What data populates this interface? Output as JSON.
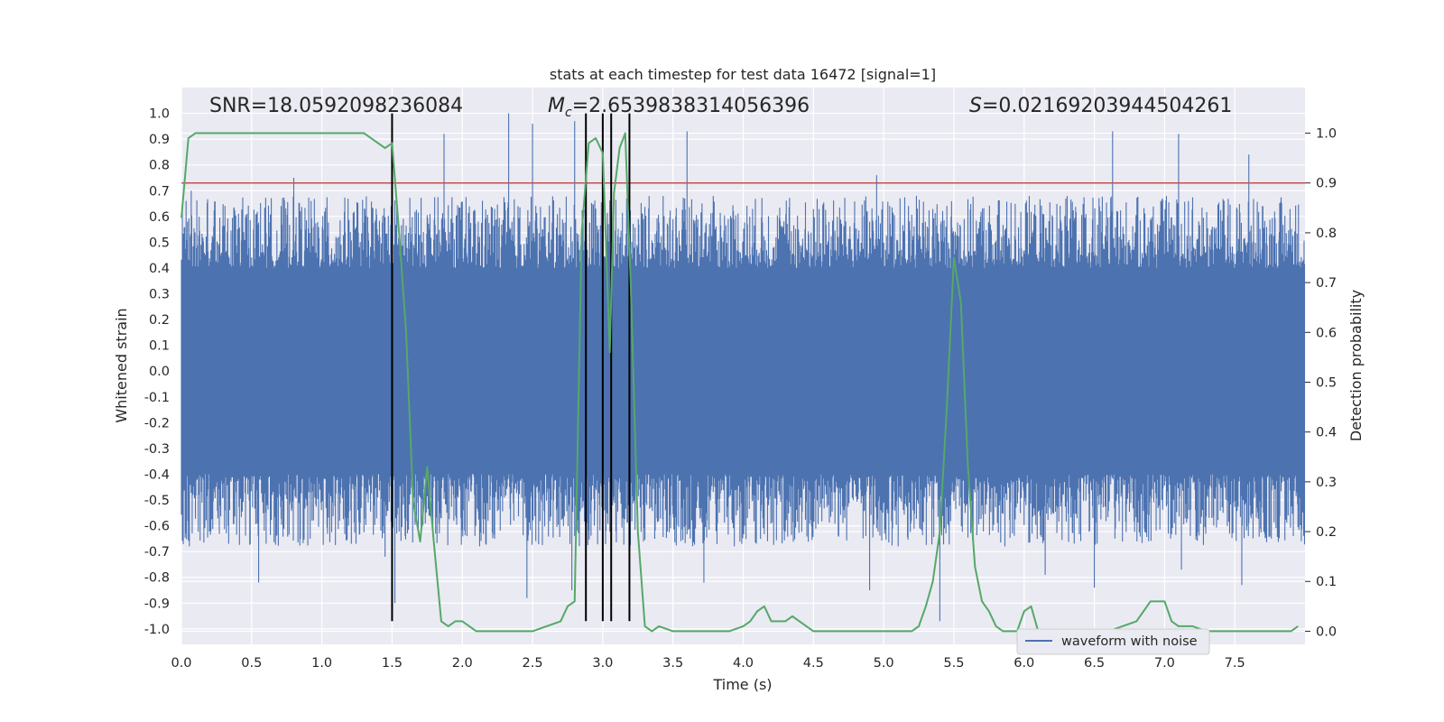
{
  "chart_data": {
    "type": "line",
    "title": "stats at each timestep for test data 16472 [signal=1]",
    "xlabel": "Time (s)",
    "ylabel_left": "Whitened strain",
    "ylabel_right": "Detection probability",
    "xlim": [
      0.0,
      8.0
    ],
    "ylim_left": [
      -1.06,
      1.1
    ],
    "ylim_right": [
      -0.0264,
      1.0916
    ],
    "x_ticks": [
      0.0,
      0.5,
      1.0,
      1.5,
      2.0,
      2.5,
      3.0,
      3.5,
      4.0,
      4.5,
      5.0,
      5.5,
      6.0,
      6.5,
      7.0,
      7.5
    ],
    "x_tick_labels": [
      "0.0",
      "0.5",
      "1.0",
      "1.5",
      "2.0",
      "2.5",
      "3.0",
      "3.5",
      "4.0",
      "4.5",
      "5.0",
      "5.5",
      "6.0",
      "6.5",
      "7.0",
      "7.5"
    ],
    "y_left_ticks": [
      1.0,
      0.9,
      0.8,
      0.7,
      0.6,
      0.5,
      0.4,
      0.3,
      0.2,
      0.1,
      0.0,
      -0.1,
      -0.2,
      -0.3,
      -0.4,
      -0.5,
      -0.6,
      -0.7,
      -0.8,
      -0.9,
      -1.0
    ],
    "y_left_tick_labels": [
      "1.0",
      "0.9",
      "0.8",
      "0.7",
      "0.6",
      "0.5",
      "0.4",
      "0.3",
      "0.2",
      "0.1",
      "0.0",
      "-0.1",
      "-0.2",
      "-0.3",
      "-0.4",
      "-0.5",
      "-0.6",
      "-0.7",
      "-0.8",
      "-0.9",
      "-1.0"
    ],
    "y_right_ticks": [
      1.0,
      0.9,
      0.8,
      0.7,
      0.6,
      0.5,
      0.4,
      0.3,
      0.2,
      0.1,
      0.0
    ],
    "y_right_tick_labels": [
      "1.0",
      "0.9",
      "0.8",
      "0.7",
      "0.6",
      "0.5",
      "0.4",
      "0.3",
      "0.2",
      "0.1",
      "0.0"
    ],
    "annotations": {
      "snr": "SNR=18.0592098236084",
      "mc_symbol": "M",
      "mc_sub": "c",
      "mc_value": "=2.6539838314056396",
      "s_symbol": "S",
      "s_value": "=0.02169203944504261"
    },
    "threshold": {
      "value": 0.9,
      "axis": "right",
      "color": "#c44e52"
    },
    "vertical_lines": [
      1.5,
      2.88,
      3.0,
      3.06,
      3.19
    ],
    "vertical_line_range": [
      -0.97,
      1.0
    ],
    "series": [
      {
        "name": "waveform with noise",
        "axis": "left",
        "color": "#4c72b0",
        "kind": "noise",
        "core_band": [
          -0.4,
          0.4
        ],
        "typical_envelope": [
          -0.6,
          0.6
        ],
        "duration_s": 8.0,
        "peaks": [
          {
            "t": 0.07,
            "v": 0.7
          },
          {
            "t": 0.55,
            "v": -0.82
          },
          {
            "t": 0.8,
            "v": 0.75
          },
          {
            "t": 1.45,
            "v": -0.72
          },
          {
            "t": 1.52,
            "v": -0.9
          },
          {
            "t": 1.87,
            "v": 0.92
          },
          {
            "t": 2.23,
            "v": -0.65
          },
          {
            "t": 2.33,
            "v": 1.0
          },
          {
            "t": 2.46,
            "v": -0.88
          },
          {
            "t": 2.5,
            "v": 0.96
          },
          {
            "t": 2.78,
            "v": -0.85
          },
          {
            "t": 2.8,
            "v": 0.97
          },
          {
            "t": 3.6,
            "v": 0.93
          },
          {
            "t": 3.72,
            "v": -0.82
          },
          {
            "t": 4.9,
            "v": -0.85
          },
          {
            "t": 4.95,
            "v": 0.76
          },
          {
            "t": 5.4,
            "v": -0.97
          },
          {
            "t": 6.15,
            "v": -0.79
          },
          {
            "t": 6.63,
            "v": 0.93
          },
          {
            "t": 6.5,
            "v": -0.84
          },
          {
            "t": 7.12,
            "v": -0.77
          },
          {
            "t": 7.1,
            "v": 0.92
          },
          {
            "t": 7.6,
            "v": 0.84
          },
          {
            "t": 7.55,
            "v": -0.83
          }
        ]
      },
      {
        "name": "detection probability",
        "axis": "right",
        "color": "#55a868",
        "x": [
          0.0,
          0.05,
          0.1,
          0.2,
          0.3,
          0.4,
          0.5,
          0.6,
          0.7,
          0.8,
          0.9,
          1.0,
          1.1,
          1.2,
          1.3,
          1.35,
          1.4,
          1.45,
          1.5,
          1.55,
          1.6,
          1.65,
          1.7,
          1.75,
          1.8,
          1.85,
          1.9,
          1.95,
          2.0,
          2.05,
          2.1,
          2.2,
          2.3,
          2.4,
          2.5,
          2.6,
          2.7,
          2.75,
          2.8,
          2.85,
          2.9,
          2.95,
          3.0,
          3.05,
          3.08,
          3.12,
          3.16,
          3.2,
          3.25,
          3.3,
          3.35,
          3.4,
          3.5,
          3.6,
          3.7,
          3.8,
          3.9,
          4.0,
          4.05,
          4.1,
          4.15,
          4.2,
          4.25,
          4.3,
          4.35,
          4.4,
          4.45,
          4.5,
          4.6,
          4.7,
          4.8,
          4.9,
          5.0,
          5.1,
          5.2,
          5.25,
          5.3,
          5.35,
          5.4,
          5.45,
          5.5,
          5.55,
          5.6,
          5.65,
          5.7,
          5.75,
          5.8,
          5.85,
          5.9,
          5.95,
          6.0,
          6.05,
          6.1,
          6.15,
          6.2,
          6.3,
          6.4,
          6.5,
          6.6,
          6.7,
          6.8,
          6.9,
          6.95,
          7.0,
          7.05,
          7.1,
          7.2,
          7.3,
          7.4,
          7.5,
          7.6,
          7.7,
          7.8,
          7.9,
          7.95
        ],
        "values": [
          0.83,
          0.99,
          1.0,
          1.0,
          1.0,
          1.0,
          1.0,
          1.0,
          1.0,
          1.0,
          1.0,
          1.0,
          1.0,
          1.0,
          1.0,
          0.99,
          0.98,
          0.97,
          0.98,
          0.8,
          0.6,
          0.26,
          0.18,
          0.33,
          0.17,
          0.02,
          0.01,
          0.02,
          0.02,
          0.01,
          0.0,
          0.0,
          0.0,
          0.0,
          0.0,
          0.01,
          0.02,
          0.05,
          0.06,
          0.8,
          0.98,
          0.99,
          0.96,
          0.56,
          0.88,
          0.97,
          1.0,
          0.69,
          0.2,
          0.01,
          0.0,
          0.01,
          0.0,
          0.0,
          0.0,
          0.0,
          0.0,
          0.01,
          0.02,
          0.04,
          0.05,
          0.02,
          0.02,
          0.02,
          0.03,
          0.02,
          0.01,
          0.0,
          0.0,
          0.0,
          0.0,
          0.0,
          0.0,
          0.0,
          0.0,
          0.01,
          0.05,
          0.1,
          0.2,
          0.45,
          0.75,
          0.66,
          0.33,
          0.13,
          0.06,
          0.04,
          0.01,
          0.0,
          0.0,
          0.0,
          0.04,
          0.05,
          0.0,
          0.0,
          0.0,
          0.0,
          0.0,
          0.0,
          0.0,
          0.01,
          0.02,
          0.06,
          0.06,
          0.06,
          0.02,
          0.01,
          0.01,
          0.0,
          0.0,
          0.0,
          0.0,
          0.0,
          0.0,
          0.0,
          0.01
        ]
      }
    ],
    "legend": {
      "entries": [
        "waveform with noise"
      ],
      "placement": "bottom-right"
    },
    "grid": true
  }
}
